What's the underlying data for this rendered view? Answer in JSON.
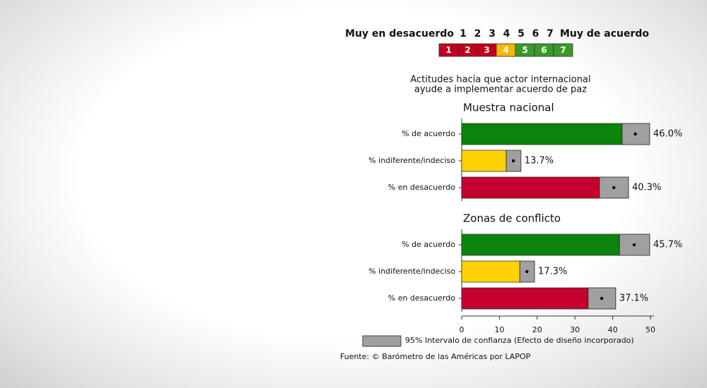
{
  "scale": {
    "left_label": "Muy en desacuerdo",
    "right_label": "Muy de acuerdo",
    "points": [
      1,
      2,
      3,
      4,
      5,
      6,
      7
    ],
    "colors": [
      "#c00020",
      "#c00020",
      "#c00020",
      "#f5b800",
      "#3a9a2a",
      "#3a9a2a",
      "#3a9a2a"
    ]
  },
  "title": [
    "Actitudes hacia que actor internacional",
    "ayude a implementar acuerdo de paz"
  ],
  "chart_data": [
    {
      "type": "bar",
      "title": "Muestra nacional",
      "categories": [
        "% de acuerdo",
        "% indiferente/indeciso",
        "% en desacuerdo"
      ],
      "values": [
        46.0,
        13.7,
        40.3
      ],
      "value_labels": [
        "46.0%",
        "13.7%",
        "40.3%"
      ],
      "ci_low": [
        42.5,
        11.8,
        36.5
      ],
      "ci_high": [
        49.8,
        15.7,
        44.2
      ],
      "colors": [
        "#0a840a",
        "#ffd200",
        "#c4002e"
      ],
      "ci_color": "#a0a0a0",
      "xlim": [
        0,
        50
      ]
    },
    {
      "type": "bar",
      "title": "Zonas de conflicto",
      "categories": [
        "% de acuerdo",
        "% indiferente/indeciso",
        "% en desacuerdo"
      ],
      "values": [
        45.7,
        17.3,
        37.1
      ],
      "value_labels": [
        "45.7%",
        "17.3%",
        "37.1%"
      ],
      "ci_low": [
        41.8,
        15.4,
        33.5
      ],
      "ci_high": [
        49.8,
        19.3,
        40.8
      ],
      "colors": [
        "#0a840a",
        "#ffd200",
        "#c4002e"
      ],
      "ci_color": "#a0a0a0",
      "xlim": [
        0,
        50
      ],
      "xticks": [
        0,
        10,
        20,
        30,
        40,
        50
      ]
    }
  ],
  "legend": "95% Intervalo de confianza (Efecto de diseño incorporado)",
  "source": "Fuente: © Barómetro de las Américas por LAPOP"
}
